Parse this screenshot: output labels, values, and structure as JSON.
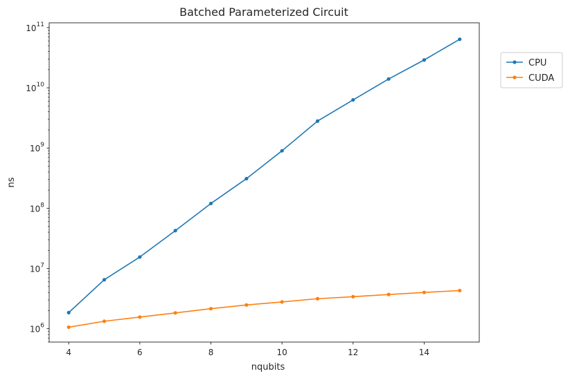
{
  "chart_data": {
    "type": "line",
    "title": "Batched Parameterized Circuit",
    "xlabel": "nqubits",
    "ylabel": "ns",
    "yscale": "log",
    "xlim": [
      3.45,
      15.55
    ],
    "ylim": [
      600000,
      120000000000
    ],
    "xticks": [
      4,
      6,
      8,
      10,
      12,
      14
    ],
    "xtick_labels": [
      "4",
      "6",
      "8",
      "10",
      "12",
      "14"
    ],
    "yticks": [
      1000000,
      10000000,
      100000000,
      1000000000,
      10000000000,
      100000000000
    ],
    "ytick_labels": [
      {
        "base": "10",
        "exp": "6"
      },
      {
        "base": "10",
        "exp": "7"
      },
      {
        "base": "10",
        "exp": "8"
      },
      {
        "base": "10",
        "exp": "9"
      },
      {
        "base": "10",
        "exp": "10"
      },
      {
        "base": "10",
        "exp": "11"
      }
    ],
    "grid": false,
    "legend_position": "right, outside plot near top",
    "x": [
      4,
      5,
      6,
      7,
      8,
      9,
      10,
      11,
      12,
      13,
      14,
      15
    ],
    "series": [
      {
        "name": "CPU",
        "color": "#1f77b4",
        "marker": "circle",
        "values": [
          1850000,
          6500000,
          15500000,
          42500000,
          120000000,
          310000000,
          900000000,
          2800000000,
          6300000000,
          14000000000,
          29000000000,
          64000000000
        ]
      },
      {
        "name": "CUDA",
        "color": "#ff7f0e",
        "marker": "circle",
        "values": [
          1060000,
          1330000,
          1560000,
          1830000,
          2150000,
          2480000,
          2780000,
          3150000,
          3400000,
          3700000,
          4000000,
          4300000
        ]
      }
    ]
  }
}
